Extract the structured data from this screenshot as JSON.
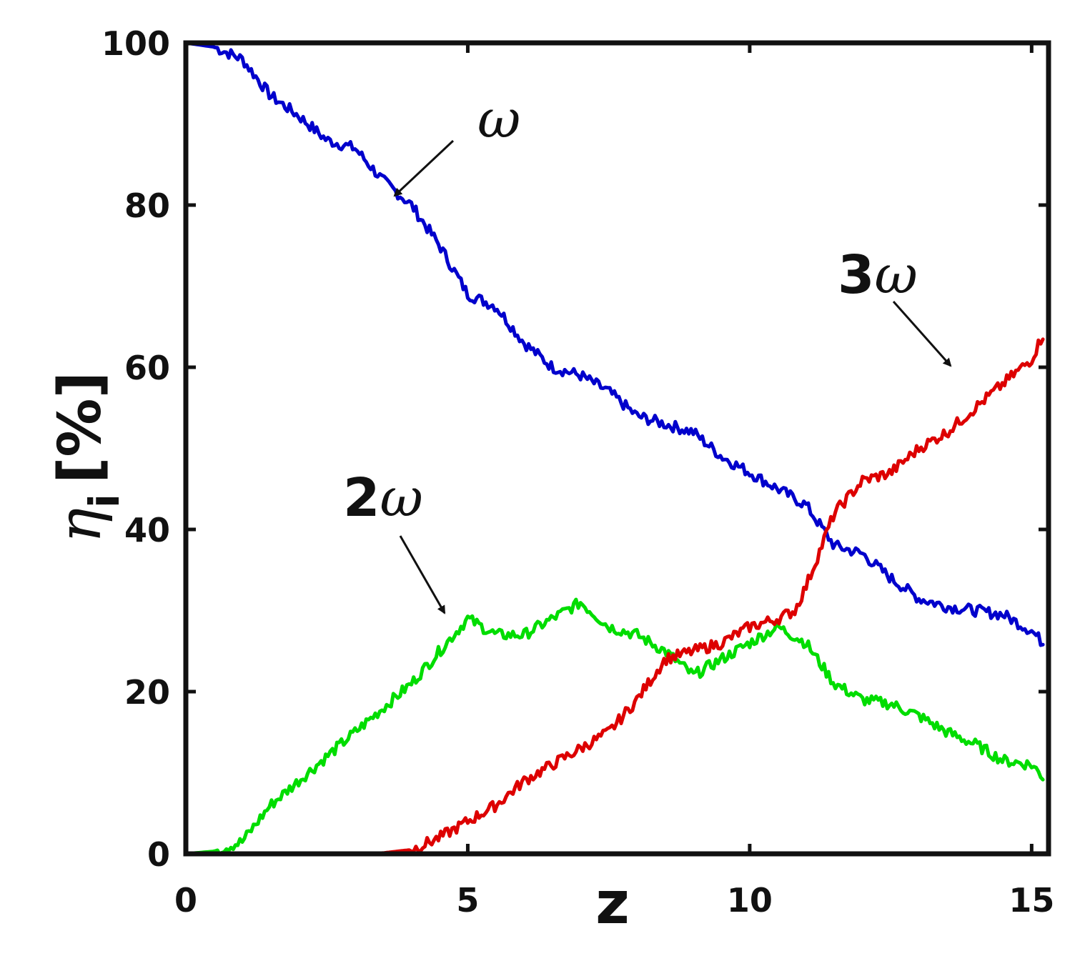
{
  "chart_data": {
    "type": "line",
    "xlabel": "z",
    "ylabel_symbol": "η",
    "ylabel_sub": "i",
    "ylabel_unit": "[%]",
    "xlim": [
      0,
      15.3
    ],
    "ylim": [
      0,
      100
    ],
    "xticks": [
      0,
      5,
      10,
      15
    ],
    "yticks": [
      0,
      20,
      40,
      60,
      80,
      100
    ],
    "grid": false,
    "series": [
      {
        "color": "#0000cc",
        "x": [
          0,
          0.5,
          1,
          1.5,
          2,
          2.5,
          3,
          3.5,
          4,
          4.5,
          5,
          5.5,
          6,
          6.5,
          7,
          7.5,
          8,
          8.5,
          9,
          9.5,
          10,
          10.5,
          11,
          11.5,
          12,
          12.5,
          13,
          13.5,
          14,
          14.5,
          15,
          15.2
        ],
        "y": [
          100,
          99.5,
          98,
          93.5,
          91,
          88,
          87,
          83,
          80,
          75,
          69,
          67.5,
          63,
          60,
          59,
          57,
          54,
          53,
          52,
          49,
          47,
          45,
          43,
          38,
          37,
          34,
          31.5,
          30.5,
          30,
          29.5,
          27.5,
          26
        ]
      },
      {
        "color": "#00dd00",
        "x": [
          0,
          0.5,
          1,
          1.5,
          2,
          2.5,
          3,
          3.5,
          4,
          4.5,
          5,
          5.5,
          6,
          6.5,
          7,
          7.5,
          8,
          8.5,
          9,
          9.5,
          10,
          10.5,
          11,
          11.5,
          12,
          12.5,
          13,
          13.5,
          14,
          14.5,
          15,
          15.2
        ],
        "y": [
          0,
          0.3,
          1.5,
          6,
          9,
          12,
          15,
          18,
          21,
          25,
          29,
          27,
          27,
          29,
          31,
          28,
          27,
          25,
          22,
          24,
          26,
          28,
          26,
          21,
          19,
          18.5,
          17,
          15,
          13.5,
          11.5,
          11,
          9.5
        ]
      },
      {
        "color": "#dd0000",
        "x": [
          0,
          1,
          2,
          3,
          3.5,
          4,
          4.5,
          5,
          5.5,
          6,
          6.5,
          7,
          7.5,
          8,
          8.5,
          9,
          9.5,
          10,
          10.5,
          10.8,
          11,
          11.5,
          12,
          12.5,
          13,
          13.5,
          14,
          14.5,
          15,
          15.2
        ],
        "y": [
          0,
          0,
          0,
          0,
          0.1,
          0.5,
          2,
          4,
          6,
          9,
          11,
          13,
          15,
          19,
          24,
          25,
          26,
          28,
          29,
          30,
          33,
          42,
          46,
          47,
          50,
          52,
          55,
          58,
          61,
          64
        ]
      }
    ],
    "annotations": [
      {
        "prefix": "",
        "symbol": "ω"
      },
      {
        "prefix": "2",
        "symbol": "ω"
      },
      {
        "prefix": "3",
        "symbol": "ω"
      }
    ]
  }
}
